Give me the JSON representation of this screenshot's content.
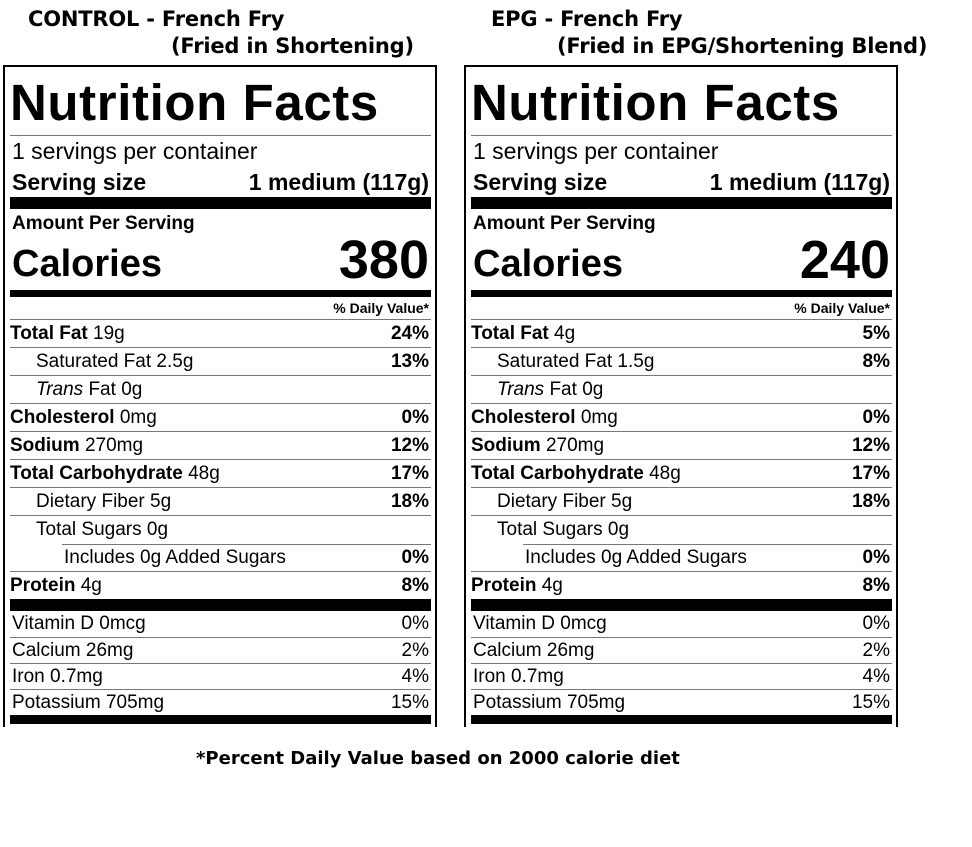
{
  "headings": {
    "control": {
      "line1": "CONTROL - French Fry",
      "line2": "(Fried in Shortening)"
    },
    "epg": {
      "line1": "EPG - French Fry",
      "line2": "(Fried in EPG/Shortening Blend)"
    }
  },
  "labels": {
    "title": "Nutrition Facts",
    "servings": "1 servings per container",
    "serving_size_label": "Serving size",
    "serving_size_value": "1 medium (117g)",
    "amount_per_serving": "Amount Per Serving",
    "calories_label": "Calories",
    "daily_value": "% Daily Value*",
    "total_fat": "Total Fat",
    "saturated_fat": "Saturated Fat",
    "trans": "Trans",
    "fat": "Fat",
    "cholesterol": "Cholesterol",
    "sodium": "Sodium",
    "total_carb": "Total Carbohydrate",
    "dietary_fiber": "Dietary Fiber",
    "total_sugars": "Total Sugars",
    "added_sugars": "Includes 0g Added Sugars",
    "protein": "Protein",
    "vitamin_d": "Vitamin D 0mcg",
    "calcium": "Calcium 26mg",
    "iron": "Iron 0.7mg",
    "potassium": "Potassium 705mg"
  },
  "control": {
    "calories": "380",
    "total_fat": "19g",
    "total_fat_dv": "24%",
    "sat_fat": "2.5g",
    "sat_fat_dv": "13%",
    "trans_fat": "0g",
    "cholesterol": "0mg",
    "cholesterol_dv": "0%",
    "sodium": "270mg",
    "sodium_dv": "12%",
    "carb": "48g",
    "carb_dv": "17%",
    "fiber": "5g",
    "fiber_dv": "18%",
    "sugars": "0g",
    "added_sugars_dv": "0%",
    "protein": "4g",
    "protein_dv": "8%",
    "vitamin_d_dv": "0%",
    "calcium_dv": "2%",
    "iron_dv": "4%",
    "potassium_dv": "15%"
  },
  "epg": {
    "calories": "240",
    "total_fat": "4g",
    "total_fat_dv": "5%",
    "sat_fat": "1.5g",
    "sat_fat_dv": "8%",
    "trans_fat": "0g",
    "cholesterol": "0mg",
    "cholesterol_dv": "0%",
    "sodium": "270mg",
    "sodium_dv": "12%",
    "carb": "48g",
    "carb_dv": "17%",
    "fiber": "5g",
    "fiber_dv": "18%",
    "sugars": "0g",
    "added_sugars_dv": "0%",
    "protein": "4g",
    "protein_dv": "8%",
    "vitamin_d_dv": "0%",
    "calcium_dv": "2%",
    "iron_dv": "4%",
    "potassium_dv": "15%"
  },
  "footnote": "*Percent Daily Value based on 2000 calorie diet"
}
